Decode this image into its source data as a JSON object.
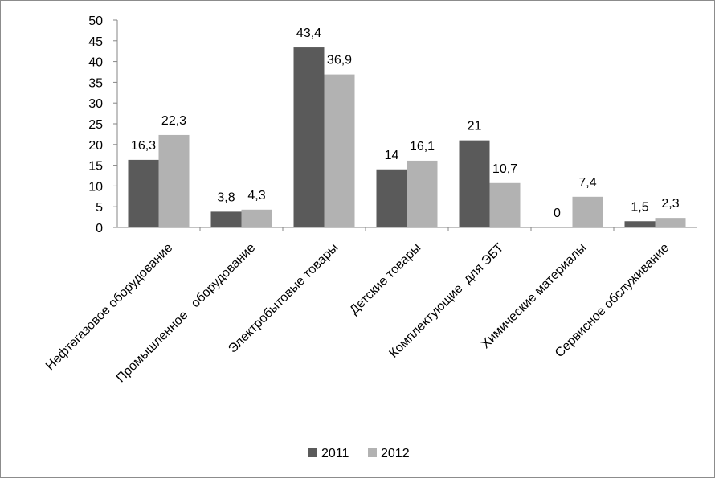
{
  "chart_data": {
    "type": "bar",
    "categories": [
      "Нефтегазовое оборудование",
      "Промышленное   оборудование",
      "Электробытовые товары",
      "Детские товары",
      "Комплектующие  для ЭБТ",
      "Химические материалы",
      "Сервисное обслуживание"
    ],
    "series": [
      {
        "name": "2011",
        "color": "#5a5a5a",
        "values": [
          16.3,
          3.8,
          43.4,
          14,
          21,
          0,
          1.5
        ],
        "labels": [
          "16,3",
          "3,8",
          "43,4",
          "14",
          "21",
          "0",
          "1,5"
        ]
      },
      {
        "name": "2012",
        "color": "#b2b2b2",
        "values": [
          22.3,
          4.3,
          36.9,
          16.1,
          10.7,
          7.4,
          2.3
        ],
        "labels": [
          "22,3",
          "4,3",
          "36,9",
          "16,1",
          "10,7",
          "7,4",
          "2,3"
        ]
      }
    ],
    "ylim": [
      0,
      50
    ],
    "yticks": [
      "0",
      "5",
      "10",
      "15",
      "20",
      "25",
      "30",
      "35",
      "40",
      "45",
      "50"
    ],
    "grid": false,
    "legend_position": "bottom",
    "title": "",
    "xlabel": "",
    "ylabel": ""
  }
}
